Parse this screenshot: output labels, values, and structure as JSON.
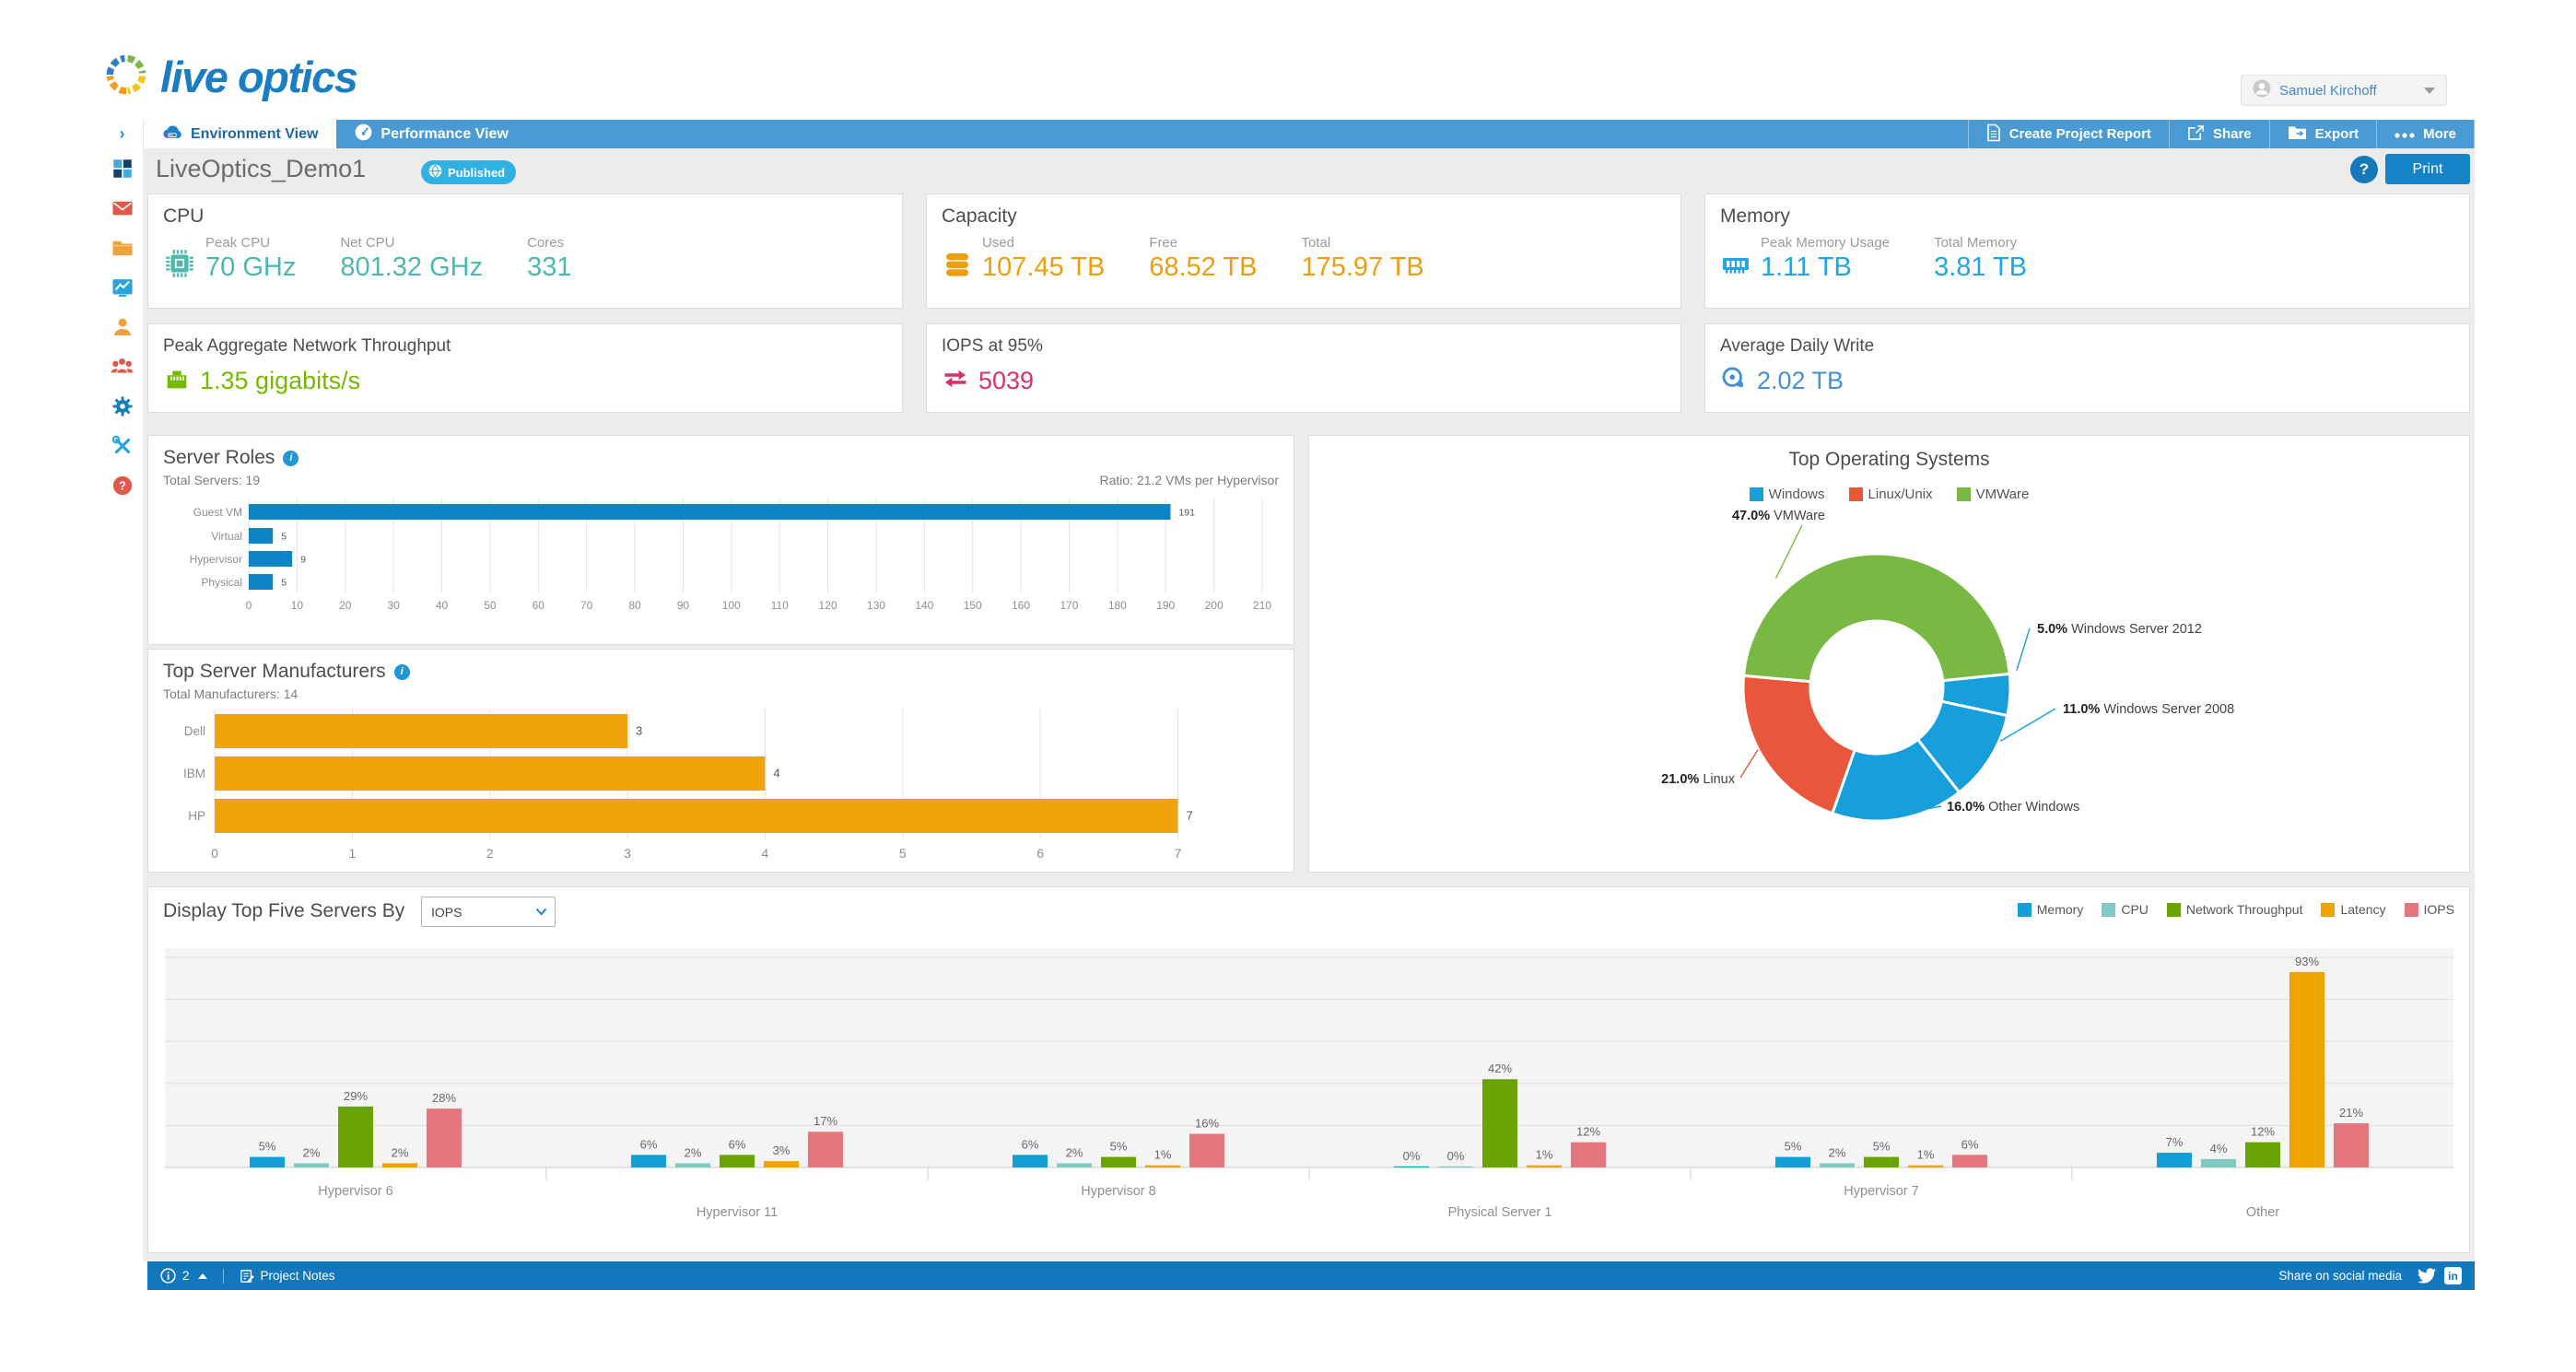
{
  "header": {
    "logo_text": "live optics",
    "user": {
      "name": "Samuel Kirchoff"
    }
  },
  "nav": {
    "tabs": [
      {
        "label": "Environment View"
      },
      {
        "label": "Performance View"
      }
    ],
    "actions": [
      {
        "label": "Create Project Report"
      },
      {
        "label": "Share"
      },
      {
        "label": "Export"
      },
      {
        "label": "More"
      }
    ]
  },
  "sidebar": {
    "items": [
      {
        "icon": "dashboard-icon"
      },
      {
        "icon": "mail-icon"
      },
      {
        "icon": "folder-icon"
      },
      {
        "icon": "analytics-icon"
      },
      {
        "icon": "user-icon"
      },
      {
        "icon": "team-icon"
      },
      {
        "icon": "gear-icon"
      },
      {
        "icon": "tools-icon"
      },
      {
        "icon": "help-icon"
      }
    ]
  },
  "toolbar": {
    "title": "LiveOptics_Demo1",
    "badge": "Published",
    "help_label": "?",
    "print_label": "Print"
  },
  "metrics": {
    "cpu": {
      "title": "CPU",
      "color": "#4db8b0",
      "items": [
        {
          "label": "Peak CPU",
          "value": "70 GHz"
        },
        {
          "label": "Net CPU",
          "value": "801.32 GHz"
        },
        {
          "label": "Cores",
          "value": "331"
        }
      ]
    },
    "capacity": {
      "title": "Capacity",
      "color": "#eb9e0f",
      "items": [
        {
          "label": "Used",
          "value": "107.45 TB"
        },
        {
          "label": "Free",
          "value": "68.52 TB"
        },
        {
          "label": "Total",
          "value": "175.97 TB"
        }
      ]
    },
    "memory": {
      "title": "Memory",
      "color": "#25a5df",
      "items": [
        {
          "label": "Peak Memory Usage",
          "value": "1.11 TB"
        },
        {
          "label": "Total Memory",
          "value": "3.81 TB"
        }
      ]
    },
    "network": {
      "title": "Peak Aggregate Network Throughput",
      "value": "1.35 gigabits/s",
      "color": "#76b900"
    },
    "iops": {
      "title": "IOPS at 95%",
      "value": "5039",
      "color": "#d8316e"
    },
    "daily_write": {
      "title": "Average Daily Write",
      "value": "2.02 TB",
      "color": "#4690cf"
    }
  },
  "chart_data": [
    {
      "id": "server_roles",
      "type": "bar",
      "orientation": "horizontal",
      "title": "Server Roles",
      "subtitle_left": "Total Servers: 19",
      "subtitle_right": "Ratio: 21.2 VMs per Hypervisor",
      "categories": [
        "Guest VM",
        "Virtual",
        "Hypervisor",
        "Physical"
      ],
      "values": [
        191,
        5,
        9,
        5
      ],
      "xlim": [
        0,
        210
      ],
      "tick_step": 10,
      "grid": true,
      "bar_color": "#0d84c6"
    },
    {
      "id": "manufacturers",
      "type": "bar",
      "orientation": "horizontal",
      "title": "Top Server Manufacturers",
      "subtitle_left": "Total Manufacturers: 14",
      "categories": [
        "Dell",
        "IBM",
        "HP"
      ],
      "values": [
        3,
        4,
        7
      ],
      "xlim": [
        0,
        7.7
      ],
      "tick_step": 1,
      "tick_label_max": 7,
      "grid": true,
      "bar_color": "#f0a30a"
    },
    {
      "id": "top_os",
      "type": "pie",
      "title": "Top Operating Systems",
      "legend": [
        {
          "label": "Windows",
          "color": "#169fdb"
        },
        {
          "label": "Linux/Unix",
          "color": "#e8563c"
        },
        {
          "label": "VMWare",
          "color": "#78b843"
        }
      ],
      "start_angle": -85,
      "slices": [
        {
          "pct": 47,
          "pct_label": "47.0%",
          "name": "VMWare",
          "color": "#78b843",
          "lx": 560,
          "ly": 32,
          "anchor": "end",
          "angle": -46,
          "fx": 535,
          "fy": 38
        },
        {
          "pct": 5,
          "pct_label": "5.0%",
          "name": "Windows Server 2012",
          "color": "#169fdb",
          "lx": 790,
          "ly": 155,
          "anchor": "start",
          "angle": 88,
          "fx": 782,
          "fy": 150
        },
        {
          "pct": 11,
          "pct_label": "11.0%",
          "name": "Windows Server 2008",
          "color": "#169fdb",
          "lx": 818,
          "ly": 242,
          "anchor": "start",
          "angle": 118,
          "fx": 810,
          "fy": 237
        },
        {
          "pct": 16,
          "pct_label": "16.0%",
          "name": "Other Windows",
          "color": "#169fdb",
          "lx": 692,
          "ly": 348,
          "anchor": "start",
          "angle": 168,
          "fx": 686,
          "fy": 343
        },
        {
          "pct": 21,
          "pct_label": "21.0%",
          "name": "Linux",
          "color": "#e8563c",
          "lx": 462,
          "ly": 318,
          "anchor": "end",
          "angle": 238,
          "fx": 468,
          "fy": 312
        }
      ]
    },
    {
      "id": "top_servers",
      "type": "bar",
      "grouped": true,
      "control_label": "Display Top Five Servers By",
      "dropdown_value": "IOPS",
      "categories": [
        "Hypervisor 6",
        "Hypervisor 11",
        "Hypervisor 8",
        "Physical Server 1",
        "Hypervisor 7",
        "Other"
      ],
      "series": [
        {
          "name": "Memory",
          "color": "#149ed6",
          "values": [
            5,
            6,
            6,
            0,
            5,
            7
          ]
        },
        {
          "name": "CPU",
          "color": "#7fcbc3",
          "values": [
            2,
            2,
            2,
            0,
            2,
            4
          ]
        },
        {
          "name": "Network Throughput",
          "color": "#69a402",
          "values": [
            29,
            6,
            5,
            42,
            5,
            12
          ]
        },
        {
          "name": "Latency",
          "color": "#f0a400",
          "values": [
            2,
            3,
            1,
            1,
            1,
            93
          ]
        },
        {
          "name": "IOPS",
          "color": "#e4767e",
          "values": [
            28,
            17,
            16,
            12,
            6,
            21
          ]
        }
      ],
      "value_suffix": "%",
      "ylim": [
        0,
        105
      ],
      "grid": true
    }
  ],
  "footer": {
    "count": "2",
    "notes_label": "Project Notes",
    "share_label": "Share on social media"
  }
}
